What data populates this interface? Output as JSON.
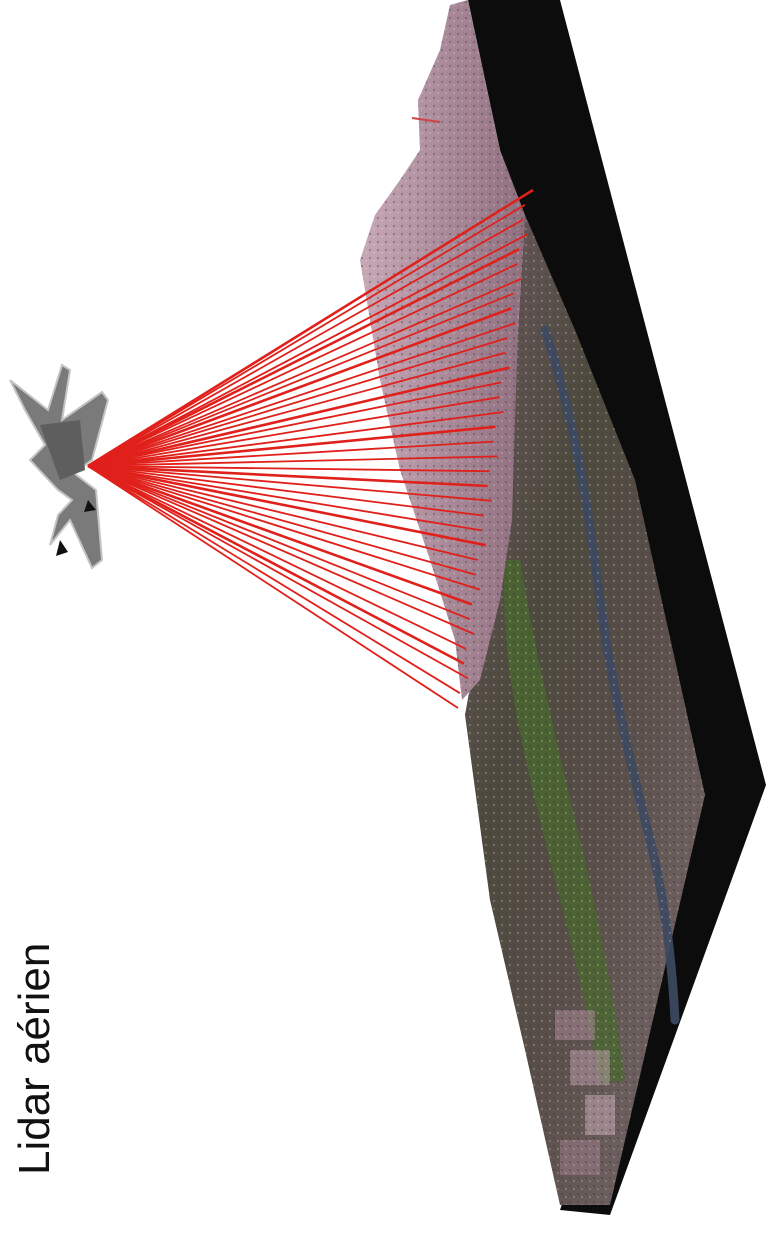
{
  "caption": "Lidar aérien",
  "colors": {
    "laser_beams": "#e0201b",
    "aircraft": "#7a7a7a",
    "terrain_base": "#0c0c0c",
    "point_cloud": "#b592a1",
    "orthophoto": "#5d4d4c",
    "river": "#3d4a63",
    "vegetation": "#4a6a2e"
  },
  "icons": {
    "aircraft": "airplane-icon"
  }
}
